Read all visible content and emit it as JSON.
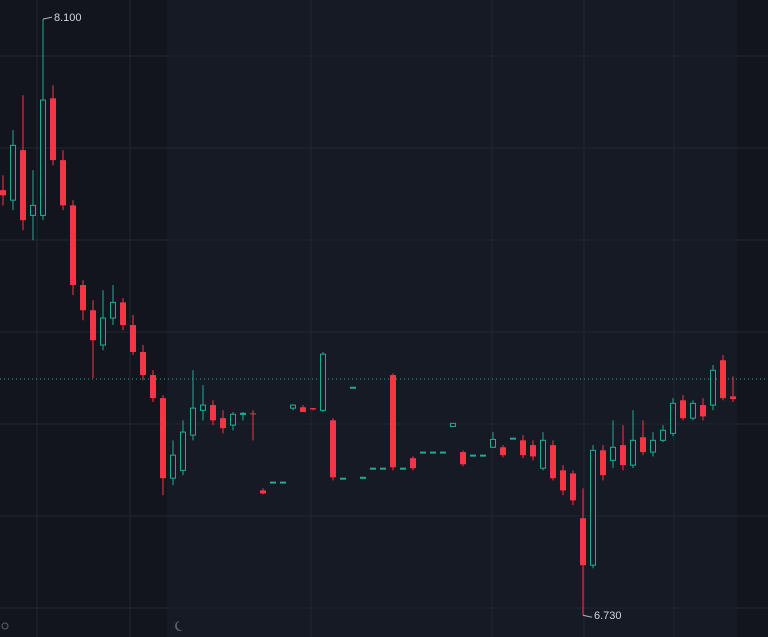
{
  "chart_data": {
    "type": "candlestick",
    "ylim": [
      6.68,
      8.144
    ],
    "up_color": "#22ab94",
    "down_color": "#f23645",
    "high_label": "8.100",
    "low_label": "6.730",
    "open": [
      7.707,
      7.684,
      7.799,
      7.649,
      7.649,
      7.918,
      7.776,
      7.672,
      7.489,
      7.431,
      7.351,
      7.413,
      7.449,
      7.397,
      7.335,
      7.282,
      7.229,
      7.045,
      7.063,
      7.144,
      7.201,
      7.213,
      7.183,
      7.167,
      7.192,
      7.194,
      7.017,
      7.036,
      7.036,
      7.206,
      7.208,
      7.206,
      7.201,
      7.178,
      7.045,
      7.254,
      7.047,
      7.068,
      7.068,
      7.282,
      7.068,
      7.091,
      7.105,
      7.105,
      7.105,
      7.164,
      7.105,
      7.098,
      7.098,
      7.116,
      7.116,
      7.137,
      7.132,
      7.121,
      7.068,
      7.121,
      7.063,
      7.056,
      6.953,
      6.845,
      7.109,
      7.086,
      7.121,
      7.075,
      7.139,
      7.105,
      7.132,
      7.148,
      7.224,
      7.183,
      7.213,
      7.213,
      7.316,
      7.233
    ],
    "high": [
      7.741,
      7.845,
      7.925,
      7.753,
      8.1,
      7.948,
      7.799,
      7.684,
      7.5,
      7.454,
      7.477,
      7.489,
      7.459,
      7.42,
      7.351,
      7.293,
      7.236,
      7.132,
      7.178,
      7.293,
      7.259,
      7.224,
      7.201,
      7.197,
      7.197,
      7.201,
      7.022,
      7.036,
      7.036,
      7.215,
      7.213,
      7.206,
      7.335,
      7.183,
      7.045,
      7.254,
      7.047,
      7.068,
      7.068,
      7.286,
      7.068,
      7.095,
      7.105,
      7.105,
      7.105,
      7.171,
      7.109,
      7.098,
      7.098,
      7.151,
      7.121,
      7.137,
      7.144,
      7.132,
      7.151,
      7.132,
      7.075,
      7.063,
      7.022,
      7.121,
      7.121,
      7.178,
      7.167,
      7.201,
      7.178,
      7.151,
      7.167,
      7.229,
      7.236,
      7.224,
      7.229,
      7.305,
      7.328,
      7.279
    ],
    "low": [
      7.672,
      7.661,
      7.615,
      7.592,
      7.638,
      7.764,
      7.661,
      7.466,
      7.408,
      7.275,
      7.339,
      7.397,
      7.385,
      7.328,
      7.27,
      7.22,
      7.006,
      7.029,
      7.052,
      7.132,
      7.178,
      7.167,
      7.148,
      7.155,
      7.178,
      7.132,
      7.008,
      7.036,
      7.036,
      7.201,
      7.197,
      7.201,
      7.197,
      7.04,
      7.045,
      7.254,
      7.047,
      7.068,
      7.068,
      7.063,
      7.068,
      7.063,
      7.105,
      7.105,
      7.105,
      7.162,
      7.072,
      7.098,
      7.098,
      7.114,
      7.093,
      7.137,
      7.091,
      7.086,
      7.063,
      7.04,
      7.006,
      6.983,
      6.73,
      6.838,
      7.04,
      7.068,
      7.063,
      7.068,
      7.098,
      7.095,
      7.128,
      7.141,
      7.178,
      7.178,
      7.178,
      7.201,
      7.224,
      7.22
    ],
    "close": [
      7.695,
      7.81,
      7.638,
      7.672,
      7.914,
      7.776,
      7.672,
      7.489,
      7.431,
      7.362,
      7.413,
      7.449,
      7.397,
      7.335,
      7.282,
      7.229,
      7.045,
      7.098,
      7.151,
      7.206,
      7.213,
      7.178,
      7.16,
      7.192,
      7.194,
      7.192,
      7.01,
      7.036,
      7.036,
      7.213,
      7.197,
      7.203,
      7.33,
      7.047,
      7.045,
      7.254,
      7.047,
      7.068,
      7.068,
      7.07,
      7.068,
      7.068,
      7.105,
      7.105,
      7.105,
      7.171,
      7.077,
      7.098,
      7.098,
      7.134,
      7.098,
      7.137,
      7.098,
      7.095,
      7.132,
      7.045,
      7.017,
      6.994,
      6.845,
      7.109,
      7.052,
      7.116,
      7.075,
      7.132,
      7.105,
      7.132,
      7.155,
      7.217,
      7.183,
      7.217,
      7.187,
      7.293,
      7.229,
      7.227
    ]
  }
}
